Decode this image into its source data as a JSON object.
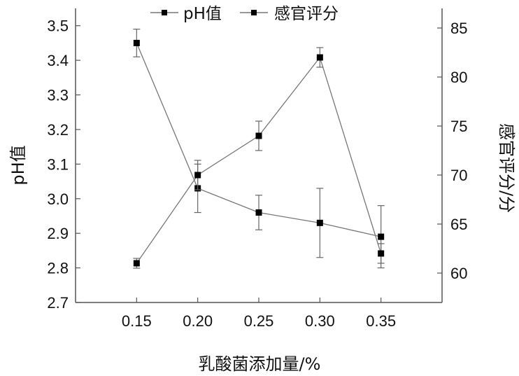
{
  "chart_data": {
    "type": "line",
    "x": [
      0.15,
      0.2,
      0.25,
      0.3,
      0.35
    ],
    "x_tick_labels": [
      "0.15",
      "0.20",
      "0.25",
      "0.30",
      "0.35"
    ],
    "xlabel": "乳酸菌添加量/%",
    "y_left": {
      "label": "pH值",
      "ylim": [
        2.7,
        3.55
      ],
      "ticks": [
        2.7,
        2.8,
        2.9,
        3.0,
        3.1,
        3.2,
        3.3,
        3.4,
        3.5
      ],
      "tick_labels": [
        "2.7",
        "2.8",
        "2.9",
        "3.0",
        "3.1",
        "3.2",
        "3.3",
        "3.4",
        "3.5"
      ]
    },
    "y_right": {
      "label": "感官评分/分",
      "ylim": [
        57,
        87
      ],
      "ticks": [
        60,
        65,
        70,
        75,
        80,
        85
      ],
      "tick_labels": [
        "60",
        "65",
        "70",
        "75",
        "80",
        "85"
      ]
    },
    "series": [
      {
        "name": "pH值",
        "axis": "left",
        "values": [
          3.45,
          3.03,
          2.96,
          2.93,
          2.89
        ],
        "errors": [
          0.04,
          0.07,
          0.05,
          0.1,
          0.09
        ],
        "color": "#777777"
      },
      {
        "name": "感官评分",
        "axis": "right",
        "values": [
          61.0,
          70.0,
          74.0,
          82.0,
          62.0
        ],
        "errors": [
          0.5,
          1.5,
          1.5,
          1.0,
          1.0
        ],
        "color": "#777777"
      }
    ],
    "legend": {
      "position": "top-center"
    },
    "grid": false,
    "marker_color": "#000000",
    "axis_color": "#555555"
  }
}
